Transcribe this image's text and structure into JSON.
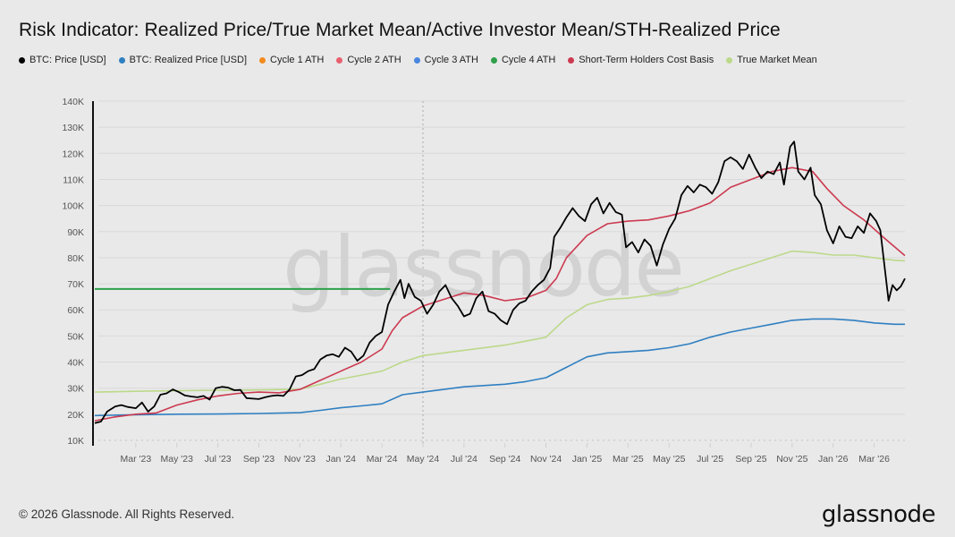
{
  "header": {
    "title": "Risk Indicator: Realized Price/True Market Mean/Active Investor Mean/STH-Realized Price"
  },
  "legend": [
    {
      "label": "BTC: Price [USD]",
      "color": "#000000"
    },
    {
      "label": "BTC: Realized Price [USD]",
      "color": "#2f7fc1"
    },
    {
      "label": "Cycle 1 ATH",
      "color": "#f28c1e"
    },
    {
      "label": "Cycle 2 ATH",
      "color": "#e8606e"
    },
    {
      "label": "Cycle 3 ATH",
      "color": "#4a86e0"
    },
    {
      "label": "Cycle 4 ATH",
      "color": "#2ea04a"
    },
    {
      "label": "Short-Term Holders Cost Basis",
      "color": "#cc3a50"
    },
    {
      "label": "True Market Mean",
      "color": "#bcd98a"
    }
  ],
  "watermark": "glassnode",
  "footer": {
    "copyright": "© 2026 Glassnode. All Rights Reserved.",
    "logo": "glassnode"
  },
  "chart_data": {
    "type": "line",
    "title": "Risk Indicator: Realized Price/True Market Mean/Active Investor Mean/STH-Realized Price",
    "xlabel": "",
    "ylabel": "",
    "x_unit": "months since Jan 2023",
    "xlim": [
      0,
      39.5
    ],
    "ylim": [
      10000,
      140000
    ],
    "y_ticks": [
      10000,
      20000,
      30000,
      40000,
      50000,
      60000,
      70000,
      80000,
      90000,
      100000,
      110000,
      120000,
      130000,
      140000
    ],
    "y_tick_labels": [
      "10K",
      "20K",
      "30K",
      "40K",
      "50K",
      "60K",
      "70K",
      "80K",
      "90K",
      "100K",
      "110K",
      "120K",
      "130K",
      "140K"
    ],
    "x_ticks": [
      2,
      4,
      6,
      8,
      10,
      12,
      14,
      16,
      18,
      20,
      22,
      24,
      26,
      28,
      30,
      32,
      34,
      36,
      38
    ],
    "x_tick_labels": [
      "Mar '23",
      "May '23",
      "Jul '23",
      "Sep '23",
      "Nov '23",
      "Jan '24",
      "Mar '24",
      "May '24",
      "Jul '24",
      "Sep '24",
      "Nov '24",
      "Jan '25",
      "Mar '25",
      "May '25",
      "Jul '25",
      "Sep '25",
      "Nov '25",
      "Jan '26",
      "Mar '26"
    ],
    "grid": true,
    "legend_position": "top-left",
    "vertical_marker_x": 16.0,
    "series": [
      {
        "name": "BTC: Price [USD]",
        "color": "#000000",
        "points": [
          [
            0,
            16600
          ],
          [
            0.3,
            17200
          ],
          [
            0.6,
            21000
          ],
          [
            1.0,
            23000
          ],
          [
            1.3,
            23500
          ],
          [
            1.6,
            22800
          ],
          [
            2.0,
            22300
          ],
          [
            2.3,
            24500
          ],
          [
            2.6,
            21000
          ],
          [
            2.9,
            23000
          ],
          [
            3.2,
            27500
          ],
          [
            3.5,
            28000
          ],
          [
            3.8,
            29500
          ],
          [
            4.1,
            28500
          ],
          [
            4.4,
            27200
          ],
          [
            4.7,
            26800
          ],
          [
            5.0,
            26500
          ],
          [
            5.3,
            27000
          ],
          [
            5.6,
            25600
          ],
          [
            5.9,
            30000
          ],
          [
            6.2,
            30500
          ],
          [
            6.5,
            30200
          ],
          [
            6.8,
            29200
          ],
          [
            7.1,
            29300
          ],
          [
            7.4,
            26200
          ],
          [
            7.7,
            26000
          ],
          [
            8.0,
            25800
          ],
          [
            8.3,
            26500
          ],
          [
            8.6,
            27000
          ],
          [
            8.9,
            27300
          ],
          [
            9.2,
            27000
          ],
          [
            9.5,
            29500
          ],
          [
            9.8,
            34500
          ],
          [
            10.1,
            35000
          ],
          [
            10.4,
            36500
          ],
          [
            10.7,
            37300
          ],
          [
            11.0,
            41000
          ],
          [
            11.3,
            42500
          ],
          [
            11.6,
            43000
          ],
          [
            11.9,
            42000
          ],
          [
            12.2,
            45500
          ],
          [
            12.5,
            44000
          ],
          [
            12.8,
            40500
          ],
          [
            13.1,
            42500
          ],
          [
            13.4,
            47500
          ],
          [
            13.7,
            50000
          ],
          [
            14.0,
            51500
          ],
          [
            14.3,
            62000
          ],
          [
            14.6,
            67000
          ],
          [
            14.9,
            71500
          ],
          [
            15.1,
            64500
          ],
          [
            15.3,
            70000
          ],
          [
            15.6,
            65000
          ],
          [
            15.9,
            63500
          ],
          [
            16.2,
            58500
          ],
          [
            16.5,
            62000
          ],
          [
            16.8,
            67000
          ],
          [
            17.1,
            69500
          ],
          [
            17.4,
            64500
          ],
          [
            17.7,
            61500
          ],
          [
            18.0,
            57500
          ],
          [
            18.3,
            58500
          ],
          [
            18.6,
            64500
          ],
          [
            18.9,
            67000
          ],
          [
            19.2,
            59500
          ],
          [
            19.5,
            58500
          ],
          [
            19.8,
            56000
          ],
          [
            20.1,
            54500
          ],
          [
            20.4,
            60000
          ],
          [
            20.7,
            62500
          ],
          [
            21.0,
            63500
          ],
          [
            21.3,
            67000
          ],
          [
            21.6,
            69500
          ],
          [
            21.9,
            71500
          ],
          [
            22.2,
            76000
          ],
          [
            22.4,
            88000
          ],
          [
            22.7,
            91500
          ],
          [
            23.0,
            95500
          ],
          [
            23.3,
            99000
          ],
          [
            23.6,
            96000
          ],
          [
            23.9,
            94000
          ],
          [
            24.2,
            100500
          ],
          [
            24.5,
            103000
          ],
          [
            24.8,
            97000
          ],
          [
            25.1,
            101000
          ],
          [
            25.4,
            97500
          ],
          [
            25.7,
            96500
          ],
          [
            25.9,
            84000
          ],
          [
            26.2,
            86000
          ],
          [
            26.5,
            82000
          ],
          [
            26.8,
            87000
          ],
          [
            27.1,
            84500
          ],
          [
            27.4,
            77000
          ],
          [
            27.7,
            85000
          ],
          [
            28.0,
            91000
          ],
          [
            28.3,
            95000
          ],
          [
            28.6,
            104000
          ],
          [
            28.9,
            107500
          ],
          [
            29.2,
            105000
          ],
          [
            29.5,
            108000
          ],
          [
            29.8,
            107000
          ],
          [
            30.1,
            104500
          ],
          [
            30.4,
            109000
          ],
          [
            30.7,
            117000
          ],
          [
            31.0,
            118500
          ],
          [
            31.3,
            117000
          ],
          [
            31.6,
            114000
          ],
          [
            31.9,
            119500
          ],
          [
            32.2,
            114500
          ],
          [
            32.5,
            110500
          ],
          [
            32.8,
            113000
          ],
          [
            33.1,
            112000
          ],
          [
            33.4,
            116500
          ],
          [
            33.6,
            108000
          ],
          [
            33.9,
            122500
          ],
          [
            34.1,
            124500
          ],
          [
            34.3,
            113000
          ],
          [
            34.6,
            110000
          ],
          [
            34.9,
            114500
          ],
          [
            35.1,
            104000
          ],
          [
            35.4,
            100500
          ],
          [
            35.7,
            90500
          ],
          [
            36.0,
            85500
          ],
          [
            36.3,
            92000
          ],
          [
            36.6,
            88000
          ],
          [
            36.9,
            87500
          ],
          [
            37.2,
            92000
          ],
          [
            37.5,
            89500
          ],
          [
            37.8,
            97000
          ],
          [
            38.1,
            94000
          ],
          [
            38.3,
            90500
          ],
          [
            38.5,
            77000
          ],
          [
            38.7,
            63500
          ],
          [
            38.9,
            69500
          ],
          [
            39.1,
            67500
          ],
          [
            39.3,
            69000
          ],
          [
            39.5,
            72000
          ]
        ]
      },
      {
        "name": "Short-Term Holders Cost Basis",
        "color": "#cc3a50",
        "points": [
          [
            0,
            17500
          ],
          [
            1,
            19000
          ],
          [
            2,
            20000
          ],
          [
            3,
            20500
          ],
          [
            4,
            23500
          ],
          [
            5,
            25500
          ],
          [
            6,
            27000
          ],
          [
            7,
            28000
          ],
          [
            8,
            28500
          ],
          [
            9,
            28200
          ],
          [
            10,
            29500
          ],
          [
            11,
            33000
          ],
          [
            12,
            36500
          ],
          [
            13,
            40000
          ],
          [
            14,
            45000
          ],
          [
            14.5,
            52000
          ],
          [
            15,
            57000
          ],
          [
            16,
            61500
          ],
          [
            17,
            64000
          ],
          [
            18,
            66500
          ],
          [
            19,
            65500
          ],
          [
            20,
            63500
          ],
          [
            21,
            64500
          ],
          [
            22,
            67500
          ],
          [
            22.5,
            72000
          ],
          [
            23,
            80000
          ],
          [
            24,
            88500
          ],
          [
            25,
            93000
          ],
          [
            26,
            94000
          ],
          [
            27,
            94500
          ],
          [
            28,
            96000
          ],
          [
            29,
            98000
          ],
          [
            30,
            101000
          ],
          [
            31,
            107000
          ],
          [
            32,
            110000
          ],
          [
            33,
            113000
          ],
          [
            34,
            114500
          ],
          [
            35,
            113000
          ],
          [
            35.7,
            106500
          ],
          [
            36.5,
            100000
          ],
          [
            37.5,
            94500
          ],
          [
            38.5,
            87500
          ],
          [
            39.5,
            80800
          ]
        ]
      },
      {
        "name": "True Market Mean",
        "color": "#bcd98a",
        "points": [
          [
            0,
            28500
          ],
          [
            2,
            28800
          ],
          [
            4,
            29000
          ],
          [
            6,
            29200
          ],
          [
            8,
            29300
          ],
          [
            10,
            29600
          ],
          [
            11,
            31500
          ],
          [
            12,
            33500
          ],
          [
            13,
            35000
          ],
          [
            14,
            36500
          ],
          [
            15,
            40000
          ],
          [
            16,
            42500
          ],
          [
            18,
            44500
          ],
          [
            20,
            46500
          ],
          [
            21,
            48000
          ],
          [
            22,
            49500
          ],
          [
            23,
            57000
          ],
          [
            24,
            62000
          ],
          [
            25,
            64000
          ],
          [
            26,
            64500
          ],
          [
            27,
            65500
          ],
          [
            28,
            67000
          ],
          [
            29,
            69000
          ],
          [
            30,
            72000
          ],
          [
            31,
            75000
          ],
          [
            32,
            77500
          ],
          [
            33,
            80000
          ],
          [
            34,
            82500
          ],
          [
            35,
            82000
          ],
          [
            36,
            81000
          ],
          [
            37,
            81000
          ],
          [
            38,
            80000
          ],
          [
            39,
            79000
          ],
          [
            39.5,
            78800
          ]
        ]
      },
      {
        "name": "BTC: Realized Price [USD]",
        "color": "#2f7fc1",
        "points": [
          [
            0,
            19500
          ],
          [
            2,
            19800
          ],
          [
            4,
            20000
          ],
          [
            6,
            20100
          ],
          [
            8,
            20300
          ],
          [
            10,
            20600
          ],
          [
            11,
            21500
          ],
          [
            12,
            22500
          ],
          [
            13,
            23200
          ],
          [
            14,
            24000
          ],
          [
            15,
            27500
          ],
          [
            16,
            28500
          ],
          [
            18,
            30500
          ],
          [
            20,
            31500
          ],
          [
            21,
            32500
          ],
          [
            22,
            34000
          ],
          [
            23,
            38000
          ],
          [
            24,
            42000
          ],
          [
            25,
            43500
          ],
          [
            26,
            44000
          ],
          [
            27,
            44500
          ],
          [
            28,
            45500
          ],
          [
            29,
            47000
          ],
          [
            30,
            49500
          ],
          [
            31,
            51500
          ],
          [
            32,
            53000
          ],
          [
            33,
            54500
          ],
          [
            34,
            56000
          ],
          [
            35,
            56500
          ],
          [
            36,
            56500
          ],
          [
            37,
            56000
          ],
          [
            38,
            55000
          ],
          [
            39,
            54500
          ],
          [
            39.5,
            54500
          ]
        ]
      },
      {
        "name": "Cycle 4 ATH",
        "color": "#2ea04a",
        "points": [
          [
            0,
            68000
          ],
          [
            14.4,
            68000
          ]
        ]
      }
    ]
  }
}
